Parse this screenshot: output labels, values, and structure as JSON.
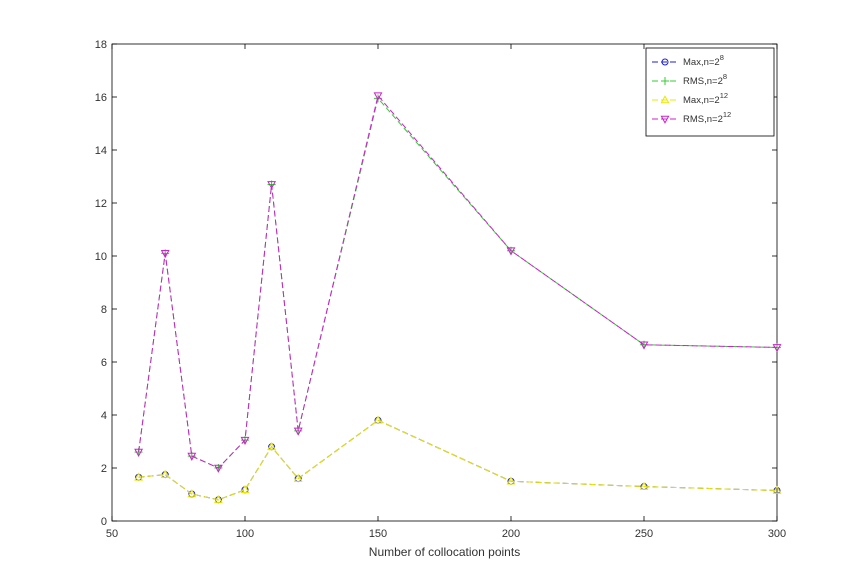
{
  "chart_data": {
    "type": "line",
    "title": "",
    "xlabel": "Number of collocation points",
    "ylabel": "",
    "xlim": [
      50,
      300
    ],
    "ylim": [
      0,
      18
    ],
    "xticks": [
      50,
      100,
      150,
      200,
      250,
      300
    ],
    "yticks": [
      0,
      2,
      4,
      6,
      8,
      10,
      12,
      14,
      16,
      18
    ],
    "grid": false,
    "legend_position": "top-right",
    "x": [
      60,
      70,
      80,
      90,
      100,
      110,
      120,
      150,
      200,
      250,
      300
    ],
    "series": [
      {
        "name": "Max,n=2^8",
        "label_base": "Max,n=2",
        "label_exp": "8",
        "color": "#1f1fd0",
        "marker": "circle",
        "values": [
          1.65,
          1.75,
          1.02,
          0.8,
          1.18,
          2.8,
          1.6,
          3.8,
          1.5,
          1.3,
          1.15
        ]
      },
      {
        "name": "RMS,n=2^8",
        "label_base": "RMS,n=2",
        "label_exp": "8",
        "color": "#33cc33",
        "marker": "plus",
        "values": [
          2.6,
          10.1,
          2.45,
          2.0,
          3.05,
          12.7,
          3.4,
          15.95,
          10.2,
          6.65,
          6.55
        ]
      },
      {
        "name": "Max,n=2^12",
        "label_base": "Max,n=2",
        "label_exp": "12",
        "color": "#e8e800",
        "marker": "triangle-up",
        "values": [
          1.65,
          1.75,
          1.02,
          0.8,
          1.18,
          2.8,
          1.6,
          3.8,
          1.5,
          1.3,
          1.15
        ]
      },
      {
        "name": "RMS,n=2^12",
        "label_base": "RMS,n=2",
        "label_exp": "12",
        "color": "#cc22cc",
        "marker": "triangle-down",
        "values": [
          2.6,
          10.1,
          2.45,
          2.0,
          3.05,
          12.7,
          3.4,
          16.05,
          10.2,
          6.65,
          6.55
        ]
      }
    ]
  }
}
